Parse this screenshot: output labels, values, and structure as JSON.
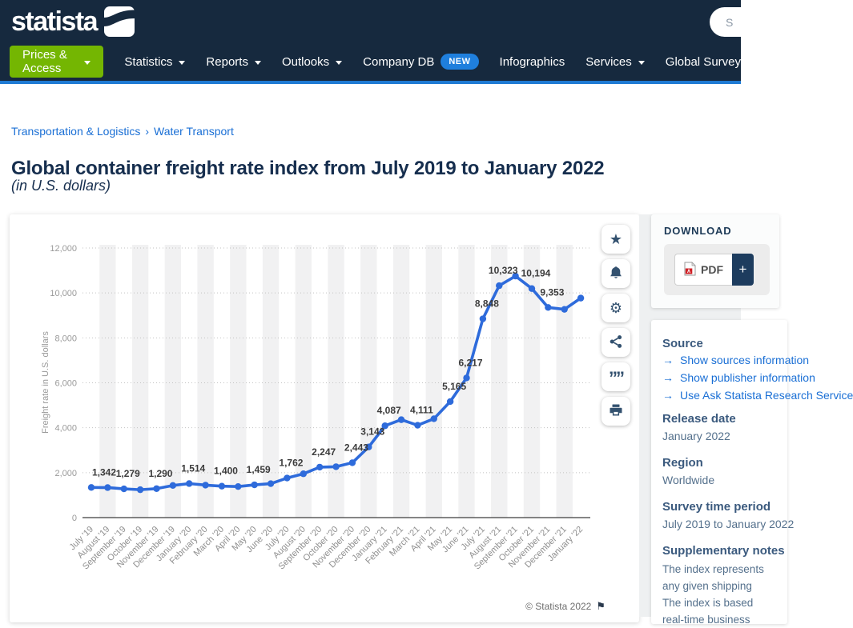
{
  "header": {
    "brand": "statista",
    "search_placeholder": "S",
    "nav": [
      {
        "label": "Prices & Access",
        "caret": true,
        "style": "primary"
      },
      {
        "label": "Statistics",
        "caret": true
      },
      {
        "label": "Reports",
        "caret": true
      },
      {
        "label": "Outlooks",
        "caret": true
      },
      {
        "label": "Company DB",
        "badge": "NEW"
      },
      {
        "label": "Infographics"
      },
      {
        "label": "Services",
        "caret": true
      },
      {
        "label": "Global Survey"
      }
    ]
  },
  "breadcrumb": {
    "items": [
      "Transportation & Logistics",
      "Water Transport"
    ],
    "separator": "›"
  },
  "page": {
    "title": "Global container freight rate index from July 2019 to January 2022",
    "subtitle": "(in U.S. dollars)"
  },
  "chart_data": {
    "type": "line",
    "title": "Global container freight rate index from July 2019 to January 2022",
    "ylabel": "Freight rate in U.S. dollars",
    "xlabel": "",
    "ylim": [
      0,
      12000
    ],
    "ytick_step": 2000,
    "yticks": [
      "0",
      "2,000",
      "4,000",
      "6,000",
      "8,000",
      "10,000",
      "12,000"
    ],
    "grid": "dotted-horizontal",
    "background": "alternating-vertical-bands",
    "line_color": "#2e6bdb",
    "x": [
      "July '19",
      "August '19",
      "September '19",
      "October '19",
      "November '19",
      "December '19",
      "January '20",
      "February '20",
      "March '20",
      "April '20",
      "May '20",
      "June '20",
      "July '20",
      "August '20",
      "September '20",
      "October '20",
      "November '20",
      "December '20",
      "January '21",
      "February '21",
      "March '21",
      "April '21",
      "May '21",
      "June '21",
      "July '21",
      "August '21",
      "September '21",
      "October '21",
      "November '21",
      "December '21",
      "January '22"
    ],
    "values": [
      1342,
      1336,
      1279,
      1242,
      1290,
      1430,
      1514,
      1446,
      1400,
      1383,
      1459,
      1512,
      1762,
      1950,
      2247,
      2265,
      2443,
      3143,
      4087,
      4358,
      4111,
      4400,
      5165,
      6217,
      8848,
      10323,
      10750,
      10194,
      9353,
      9270,
      9770
    ],
    "point_labels": [
      "1,342",
      null,
      "1,279",
      null,
      "1,290",
      null,
      "1,514",
      null,
      "1,400",
      null,
      "1,459",
      null,
      "1,762",
      null,
      "2,247",
      null,
      "2,443",
      "3,143",
      "4,087",
      null,
      "4,111",
      null,
      "5,165",
      "6,217",
      "8,848",
      "10,323",
      null,
      "10,194",
      "9,353",
      null,
      null
    ]
  },
  "chart_footer": {
    "copyright": "© Statista 2022"
  },
  "chart_actions": [
    {
      "name": "favorite",
      "icon": "star"
    },
    {
      "name": "alerts",
      "icon": "bell"
    },
    {
      "name": "settings",
      "icon": "gear"
    },
    {
      "name": "share",
      "icon": "share"
    },
    {
      "name": "cite",
      "icon": "quote"
    },
    {
      "name": "print",
      "icon": "printer"
    }
  ],
  "icons": {
    "star": "★",
    "gear": "⚙",
    "quote": "””",
    "flag": "⚑",
    "arrow": "→"
  },
  "sidebar": {
    "download": {
      "heading": "DOWNLOAD",
      "pdf_label": "PDF",
      "plus_label": "+"
    },
    "source": {
      "heading": "Source",
      "links": [
        "Show sources information",
        "Show publisher information",
        "Use Ask Statista Research Service"
      ]
    },
    "release_date": {
      "heading": "Release date",
      "value": "January 2022"
    },
    "region": {
      "heading": "Region",
      "value": "Worldwide"
    },
    "survey_period": {
      "heading": "Survey time period",
      "value": "July 2019 to January 2022"
    },
    "supplementary": {
      "heading": "Supplementary notes",
      "lines": [
        "The index represents",
        "any given shipping",
        "The index is based",
        "real-time business"
      ]
    }
  },
  "colors": {
    "header_navy": "#16293e",
    "underline_blue": "#1e7ad3",
    "accent_green": "#74b602",
    "badge_blue": "#1f7fdd",
    "link_blue": "#1a6fd5",
    "line_blue": "#2e6bdb",
    "dark_navy_button": "#1d3c5e",
    "title_navy": "#162e4e"
  }
}
